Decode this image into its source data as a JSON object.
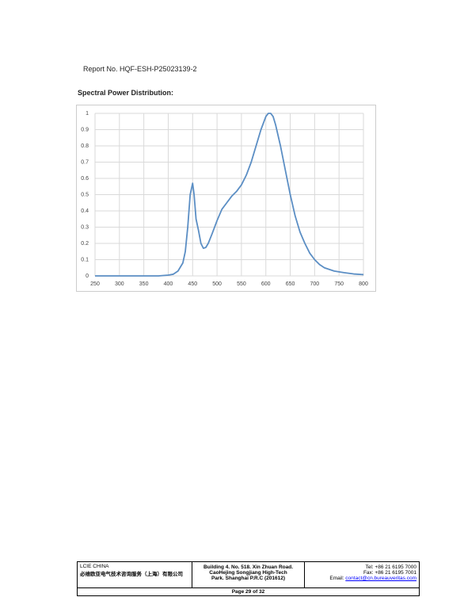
{
  "header": {
    "report_no": "Report No. HQF-ESH-P25023139-2"
  },
  "section_title": "Spectral Power Distribution:",
  "chart_data": {
    "type": "line",
    "color": "#5b8ec4",
    "grid": true,
    "x": [
      250,
      300,
      350,
      380,
      400,
      410,
      420,
      430,
      435,
      440,
      445,
      450,
      453,
      457,
      462,
      467,
      472,
      477,
      482,
      490,
      500,
      510,
      520,
      530,
      540,
      550,
      560,
      570,
      580,
      590,
      600,
      605,
      610,
      615,
      620,
      630,
      640,
      650,
      660,
      670,
      680,
      690,
      700,
      710,
      720,
      740,
      760,
      780,
      800
    ],
    "values": [
      0,
      0,
      0,
      0,
      0.005,
      0.01,
      0.03,
      0.08,
      0.15,
      0.3,
      0.5,
      0.57,
      0.5,
      0.35,
      0.28,
      0.2,
      0.17,
      0.175,
      0.2,
      0.26,
      0.34,
      0.41,
      0.45,
      0.49,
      0.52,
      0.56,
      0.62,
      0.7,
      0.8,
      0.9,
      0.98,
      1.0,
      1.0,
      0.98,
      0.93,
      0.8,
      0.65,
      0.5,
      0.37,
      0.27,
      0.2,
      0.14,
      0.1,
      0.07,
      0.05,
      0.03,
      0.02,
      0.012,
      0.008
    ],
    "xlim": [
      250,
      800
    ],
    "xticks": [
      250,
      300,
      350,
      400,
      450,
      500,
      550,
      600,
      650,
      700,
      750,
      800
    ],
    "ylim": [
      0,
      1
    ],
    "yticks": [
      0,
      0.1,
      0.2,
      0.3,
      0.4,
      0.5,
      0.6,
      0.7,
      0.8,
      0.9,
      1
    ]
  },
  "footer": {
    "company": "LCIE CHINA",
    "company_cn": "必维欧亚电气技术咨询服务（上海）有限公司",
    "address": [
      "Building 4. No. 518. Xin Zhuan Road.",
      "CaoHejing Songjiang High-Tech",
      "Park. Shanghai P.R.C (201612)"
    ],
    "tel": "Tel: +86 21 6195 7000",
    "fax": "Fax: +86 21 6195 7001",
    "email_label": "Email:",
    "email": "contact@cn.bureauveritas.com",
    "page": "Page 29 of 32"
  }
}
